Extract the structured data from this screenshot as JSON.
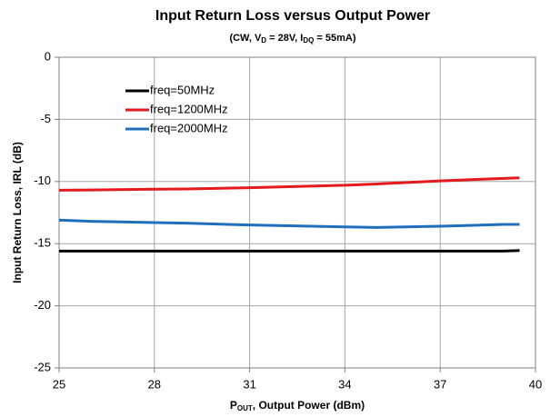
{
  "chart_data": {
    "type": "line",
    "title": "Input Return Loss versus Output Power",
    "subtitle": [
      "(CW, V",
      "D",
      " = 28V, I",
      "DQ",
      " = 55mA)"
    ],
    "x_label": [
      "P",
      "OUT",
      ", Output Power (dBm)"
    ],
    "y_label": "Input Return Loss, IRL (dB)",
    "x": [
      25,
      26,
      28,
      29,
      31,
      34,
      35,
      37,
      39,
      39.5
    ],
    "series": [
      {
        "name": "freq=50MHz",
        "color": "#000000",
        "values": [
          -15.6,
          -15.6,
          -15.6,
          -15.6,
          -15.6,
          -15.6,
          -15.6,
          -15.6,
          -15.6,
          -15.55
        ]
      },
      {
        "name": "freq=1200MHz",
        "color": "#e41a1c",
        "values": [
          -10.7,
          -10.68,
          -10.62,
          -10.6,
          -10.5,
          -10.3,
          -10.2,
          -9.95,
          -9.75,
          -9.7
        ]
      },
      {
        "name": "freq=2000MHz",
        "color": "#1f6fbf",
        "values": [
          -13.1,
          -13.2,
          -13.3,
          -13.35,
          -13.5,
          -13.65,
          -13.7,
          -13.6,
          -13.45,
          -13.45
        ]
      }
    ],
    "xlim": [
      25,
      40
    ],
    "xticks": [
      25,
      28,
      31,
      34,
      37,
      40
    ],
    "ylim": [
      -25,
      0
    ],
    "yticks": [
      -25,
      -20,
      -15,
      -10,
      -5,
      0
    ],
    "grid": true,
    "legend": "upper-left"
  }
}
